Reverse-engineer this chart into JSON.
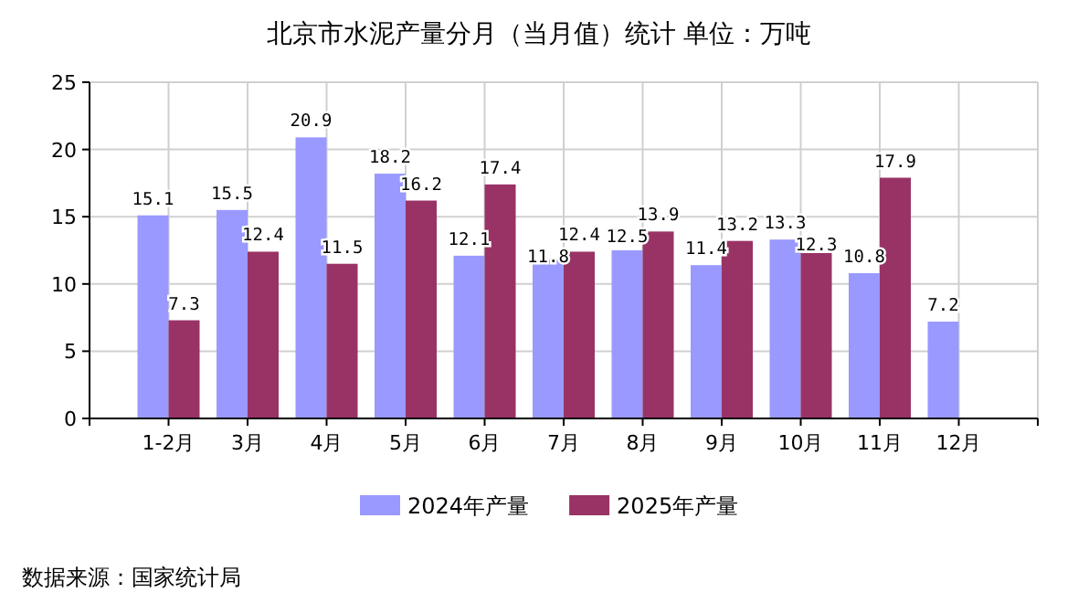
{
  "chart_data": {
    "type": "bar",
    "title": "北京市水泥产量分月（当月值）统计 单位：万吨",
    "categories": [
      "1-2月",
      "3月",
      "4月",
      "5月",
      "6月",
      "7月",
      "8月",
      "9月",
      "10月",
      "11月",
      "12月"
    ],
    "series": [
      {
        "name": "2024年产量",
        "color": "#9999ff",
        "values": [
          15.1,
          15.5,
          20.9,
          18.2,
          12.1,
          11.8,
          12.5,
          11.4,
          13.3,
          10.8,
          7.2
        ]
      },
      {
        "name": "2025年产量",
        "color": "#993366",
        "values": [
          7.3,
          12.4,
          11.5,
          16.2,
          17.4,
          12.4,
          13.9,
          13.2,
          12.3,
          17.9,
          null
        ]
      }
    ],
    "ylim": [
      0,
      25
    ],
    "yticks": [
      0,
      5,
      10,
      15,
      20,
      25
    ],
    "grid": true,
    "legend": "bottom",
    "data_labels": true,
    "annotations": [
      "数据来源：国家统计局"
    ]
  }
}
